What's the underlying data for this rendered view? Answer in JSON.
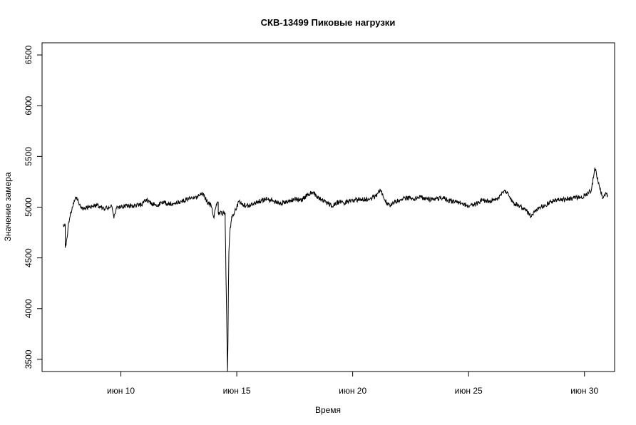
{
  "chart_data": {
    "type": "line",
    "title": "СКВ-13499 Пиковые нагрузки",
    "xlabel": "Время",
    "ylabel": "Значение замера",
    "x_unit": "day of June",
    "xlim": [
      6.6,
      31.3
    ],
    "ylim": [
      3380,
      6620
    ],
    "x_ticks": [
      {
        "value": 10,
        "label": "июн 10"
      },
      {
        "value": 15,
        "label": "июн 15"
      },
      {
        "value": 20,
        "label": "июн 20"
      },
      {
        "value": 25,
        "label": "июн 25"
      },
      {
        "value": 30,
        "label": "июн 30"
      }
    ],
    "y_ticks": [
      3500,
      4000,
      4500,
      5000,
      5500,
      6000,
      6500
    ],
    "grid": false,
    "legend": "none",
    "line_color": "#000000",
    "series": [
      {
        "values_approx": true,
        "x": [
          7.5,
          7.6,
          7.6,
          7.68,
          7.72,
          7.8,
          7.9,
          8.0,
          8.1,
          8.2,
          8.4,
          8.6,
          8.8,
          9.0,
          9.3,
          9.6,
          9.7,
          9.8,
          10.0,
          10.3,
          10.6,
          10.9,
          11.1,
          11.3,
          11.6,
          11.8,
          12.0,
          12.3,
          12.6,
          12.9,
          13.2,
          13.5,
          13.7,
          13.9,
          14.0,
          14.1,
          14.2,
          14.2,
          14.5,
          14.5,
          14.6,
          14.62,
          14.64,
          14.66,
          14.7,
          14.75,
          14.8,
          14.9,
          15.0,
          15.1,
          15.2,
          15.4,
          15.6,
          15.8,
          16.0,
          16.3,
          16.6,
          16.9,
          17.2,
          17.5,
          17.8,
          18.1,
          18.3,
          18.5,
          18.8,
          19.1,
          19.4,
          19.6,
          19.8,
          20.1,
          20.4,
          20.7,
          21.0,
          21.2,
          21.4,
          21.6,
          21.8,
          22.0,
          22.3,
          22.6,
          22.9,
          23.2,
          23.5,
          23.8,
          24.1,
          24.4,
          24.7,
          25.0,
          25.3,
          25.6,
          25.9,
          26.2,
          26.4,
          26.6,
          26.9,
          27.2,
          27.5,
          27.7,
          28.0,
          28.3,
          28.6,
          28.9,
          29.2,
          29.5,
          29.8,
          30.1,
          30.3,
          30.45,
          30.55,
          30.7,
          30.8,
          30.9,
          31.0
        ],
        "y": [
          4820,
          4820,
          4600,
          4700,
          4800,
          4900,
          5000,
          5060,
          5100,
          5020,
          4990,
          5000,
          5010,
          5020,
          4980,
          5010,
          4890,
          4990,
          5000,
          5010,
          5020,
          5020,
          5080,
          5040,
          5010,
          5060,
          5030,
          5040,
          5060,
          5080,
          5090,
          5150,
          5060,
          5010,
          4900,
          5000,
          5050,
          4940,
          4940,
          4850,
          3380,
          3650,
          4200,
          4550,
          4750,
          4850,
          4900,
          4950,
          5000,
          5060,
          5030,
          5010,
          5020,
          5040,
          5060,
          5080,
          5060,
          5040,
          5050,
          5080,
          5070,
          5130,
          5150,
          5090,
          5060,
          5010,
          5050,
          5040,
          5060,
          5070,
          5080,
          5070,
          5110,
          5170,
          5060,
          5020,
          5050,
          5070,
          5090,
          5080,
          5100,
          5080,
          5070,
          5100,
          5070,
          5050,
          5040,
          5010,
          5030,
          5070,
          5060,
          5080,
          5120,
          5160,
          5050,
          5010,
          4960,
          4910,
          4990,
          5020,
          5060,
          5070,
          5080,
          5090,
          5100,
          5120,
          5170,
          5390,
          5280,
          5150,
          5090,
          5130,
          5120
        ]
      }
    ]
  }
}
